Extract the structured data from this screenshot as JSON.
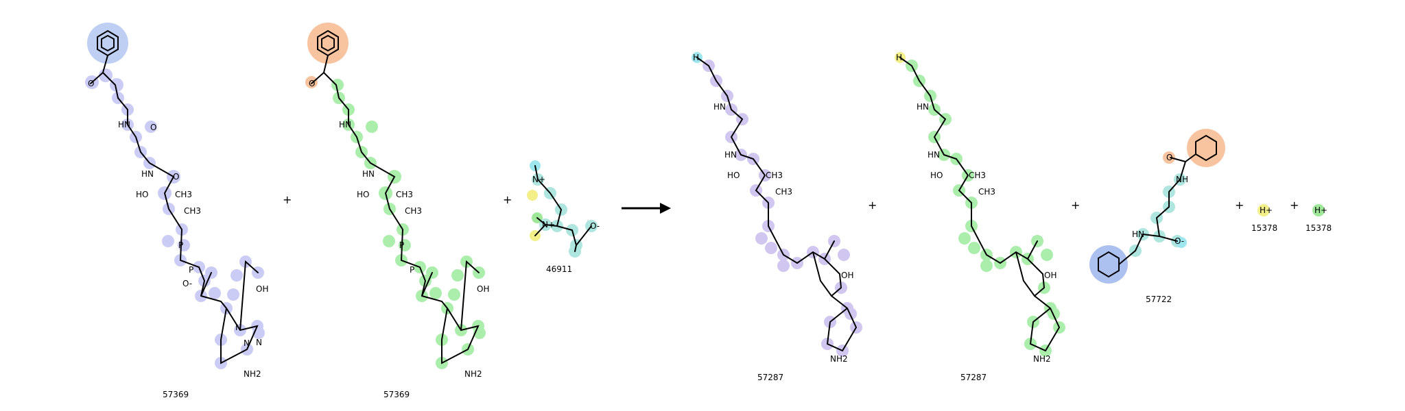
{
  "operators": {
    "plus": "+"
  },
  "compounds": [
    {
      "id": "57369",
      "highlight": "#aab0ee"
    },
    {
      "id": "57369",
      "highlight": "#8fe88f"
    },
    {
      "id": "46911",
      "highlight": "#9be0d8"
    },
    {
      "id": "57287",
      "highlight": "#c2b4ec"
    },
    {
      "id": "57287",
      "highlight": "#8fe88f"
    },
    {
      "id": "57722",
      "highlight": "#f7b88e"
    },
    {
      "id": "15378",
      "highlight": "#f3f08a"
    },
    {
      "id": "15378",
      "highlight": "#9fe89a"
    }
  ],
  "atoms": {
    "hn": "HN",
    "o": "O",
    "ho": "HO",
    "oh": "OH",
    "nh2": "NH2",
    "ch3": "CH3",
    "n": "N",
    "p": "P",
    "h": "H",
    "o_minus": "O-",
    "n_plus": "N+",
    "h_plus": "H+",
    "nh": "NH"
  },
  "colors": {
    "benzoyl": "#f7b88e",
    "blue_ring": "#9fb6ee",
    "cyan": "#9ee6ee",
    "yellow": "#f3f08a",
    "arrow": "#000000"
  }
}
